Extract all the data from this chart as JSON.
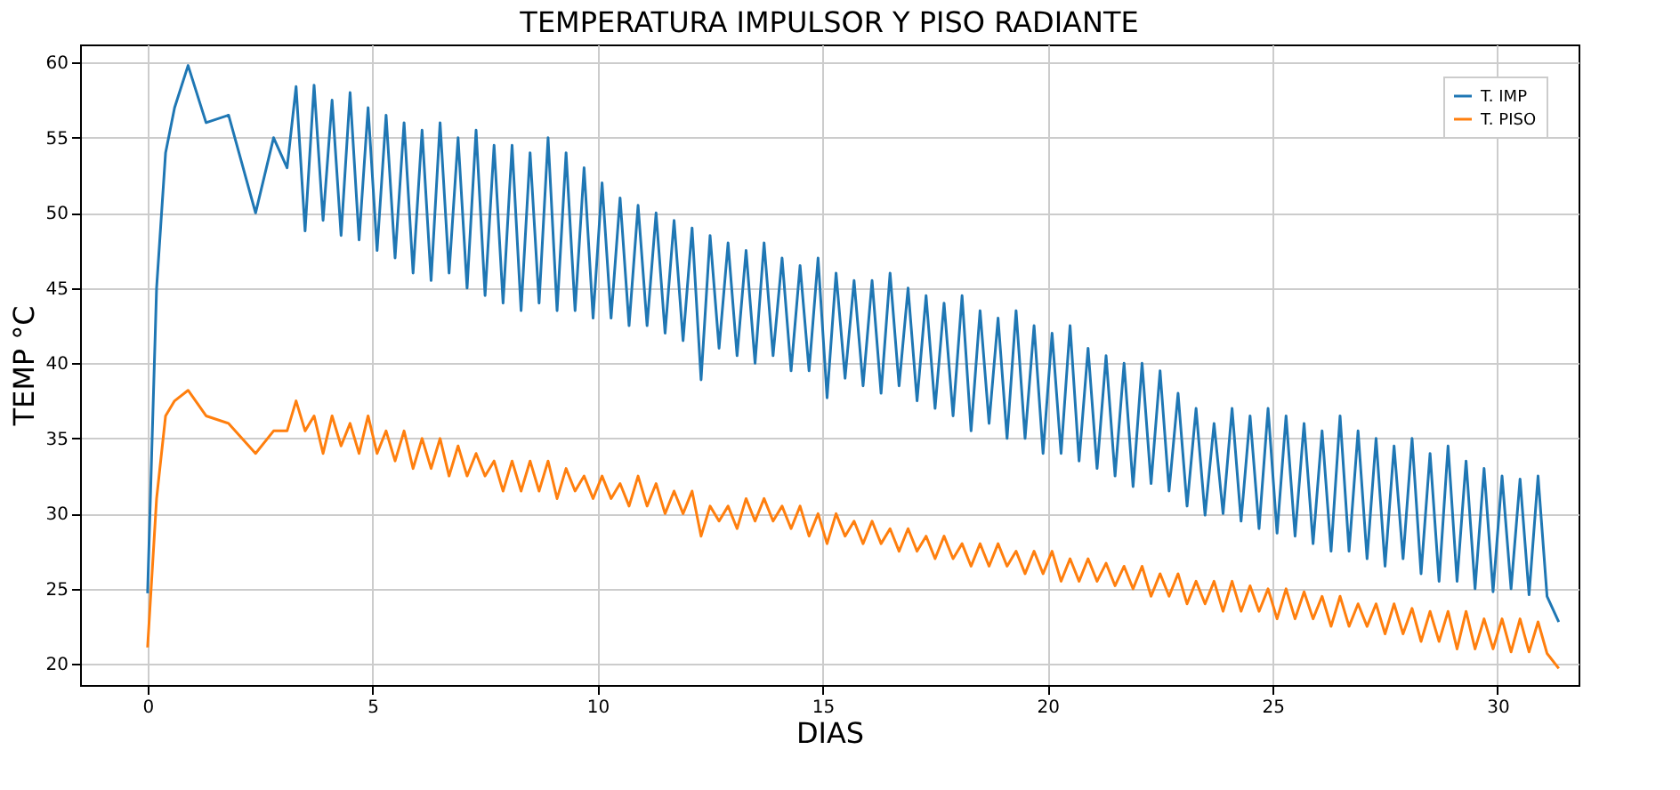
{
  "chart_data": {
    "type": "line",
    "title": "TEMPERATURA IMPULSOR Y PISO RADIANTE",
    "xlabel": "DIAS",
    "ylabel": "TEMP °C",
    "x": [
      0,
      0.2,
      0.4,
      0.6,
      0.9,
      1.3,
      1.8,
      2.4,
      2.8,
      3.1,
      3.3,
      3.5,
      3.7,
      3.9,
      4.1,
      4.3,
      4.5,
      4.7,
      4.9,
      5.1,
      5.3,
      5.5,
      5.7,
      5.9,
      6.1,
      6.3,
      6.5,
      6.7,
      6.9,
      7.1,
      7.3,
      7.5,
      7.7,
      7.9,
      8.1,
      8.3,
      8.5,
      8.7,
      8.9,
      9.1,
      9.3,
      9.5,
      9.7,
      9.9,
      10.1,
      10.3,
      10.5,
      10.7,
      10.9,
      11.1,
      11.3,
      11.5,
      11.7,
      11.9,
      12.1,
      12.3,
      12.5,
      12.7,
      12.9,
      13.1,
      13.3,
      13.5,
      13.7,
      13.9,
      14.1,
      14.3,
      14.5,
      14.7,
      14.9,
      15.1,
      15.3,
      15.5,
      15.7,
      15.9,
      16.1,
      16.3,
      16.5,
      16.7,
      16.9,
      17.1,
      17.3,
      17.5,
      17.7,
      17.9,
      18.1,
      18.3,
      18.5,
      18.7,
      18.9,
      19.1,
      19.3,
      19.5,
      19.7,
      19.9,
      20.1,
      20.3,
      20.5,
      20.7,
      20.9,
      21.1,
      21.3,
      21.5,
      21.7,
      21.9,
      22.1,
      22.3,
      22.5,
      22.7,
      22.9,
      23.1,
      23.3,
      23.5,
      23.7,
      23.9,
      24.1,
      24.3,
      24.5,
      24.7,
      24.9,
      25.1,
      25.3,
      25.5,
      25.7,
      25.9,
      26.1,
      26.3,
      26.5,
      26.7,
      26.9,
      27.1,
      27.3,
      27.5,
      27.7,
      27.9,
      28.1,
      28.3,
      28.5,
      28.7,
      28.9,
      29.1,
      29.3,
      29.5,
      29.7,
      29.9,
      30.1,
      30.3,
      30.5,
      30.7,
      30.9,
      31.1,
      31.36
    ],
    "series": [
      {
        "name": "T. IMP",
        "color": "#1f77b4",
        "values": [
          24.7,
          45,
          54,
          57,
          59.8,
          56,
          56.5,
          50,
          55,
          53,
          58.4,
          48.8,
          58.5,
          49.5,
          57.5,
          48.5,
          58,
          48.2,
          57,
          47.5,
          56.5,
          47,
          56,
          46,
          55.5,
          45.5,
          56,
          46,
          55,
          45,
          55.5,
          44.5,
          54.5,
          44,
          54.5,
          43.5,
          54,
          44,
          55,
          43.5,
          54,
          43.5,
          53,
          43,
          52,
          43,
          51,
          42.5,
          50.5,
          42.5,
          50,
          42,
          49.5,
          41.5,
          49,
          38.9,
          48.5,
          41,
          48,
          40.5,
          47.5,
          40,
          48,
          40.5,
          47,
          39.5,
          46.5,
          39.5,
          47,
          37.7,
          46,
          39,
          45.5,
          38.5,
          45.5,
          38,
          46,
          38.5,
          45,
          37.5,
          44.5,
          37,
          44,
          36.5,
          44.5,
          35.5,
          43.5,
          36,
          43,
          35,
          43.5,
          35,
          42.5,
          34,
          42,
          34,
          42.5,
          33.5,
          41,
          33,
          40.5,
          32.5,
          40,
          31.8,
          40,
          32,
          39.5,
          31.5,
          38,
          30.5,
          37,
          29.9,
          36,
          30,
          37,
          29.5,
          36.5,
          29,
          37,
          28.7,
          36.5,
          28.5,
          36,
          28,
          35.5,
          27.5,
          36.5,
          27.5,
          35.5,
          27,
          35,
          26.5,
          34.5,
          27,
          35,
          26,
          34,
          25.5,
          34.5,
          25.5,
          33.5,
          25,
          33,
          24.8,
          32.5,
          25,
          32.3,
          24.6,
          32.5,
          24.5,
          22.8
        ]
      },
      {
        "name": "T. PISO",
        "color": "#ff7f0e",
        "values": [
          21.1,
          31,
          36.5,
          37.5,
          38.2,
          36.5,
          36,
          34,
          35.5,
          35.5,
          37.5,
          35.5,
          36.5,
          34,
          36.5,
          34.5,
          36,
          34,
          36.5,
          34,
          35.5,
          33.5,
          35.5,
          33,
          35,
          33,
          35,
          32.5,
          34.5,
          32.5,
          34,
          32.5,
          33.5,
          31.5,
          33.5,
          31.5,
          33.5,
          31.5,
          33.5,
          31,
          33,
          31.5,
          32.5,
          31,
          32.5,
          31,
          32,
          30.5,
          32.5,
          30.5,
          32,
          30,
          31.5,
          30,
          31.5,
          28.5,
          30.5,
          29.5,
          30.5,
          29,
          31,
          29.5,
          31,
          29.5,
          30.5,
          29,
          30.5,
          28.5,
          30,
          28,
          30,
          28.5,
          29.5,
          28,
          29.5,
          28,
          29,
          27.5,
          29,
          27.5,
          28.5,
          27,
          28.5,
          27,
          28,
          26.5,
          28,
          26.5,
          28,
          26.5,
          27.5,
          26,
          27.5,
          26,
          27.5,
          25.5,
          27,
          25.5,
          27,
          25.5,
          26.7,
          25.2,
          26.5,
          25,
          26.5,
          24.5,
          26,
          24.5,
          26,
          24,
          25.5,
          24,
          25.5,
          23.5,
          25.5,
          23.5,
          25.2,
          23.5,
          25,
          23,
          25,
          23,
          24.8,
          23,
          24.5,
          22.5,
          24.5,
          22.5,
          24,
          22.5,
          24,
          22,
          24,
          22,
          23.7,
          21.5,
          23.5,
          21.5,
          23.5,
          21,
          23.5,
          21,
          23,
          21,
          23,
          20.8,
          23,
          20.8,
          22.8,
          20.7,
          19.7
        ]
      }
    ],
    "xlim": [
      -1.5,
      31.8
    ],
    "ylim": [
      18.6,
      61.2
    ],
    "xticks": [
      0,
      5,
      10,
      15,
      20,
      25,
      30
    ],
    "yticks": [
      20,
      25,
      30,
      35,
      40,
      45,
      50,
      55,
      60
    ],
    "grid": true,
    "legend": "top right",
    "marker": "none",
    "line_style": "solid"
  }
}
